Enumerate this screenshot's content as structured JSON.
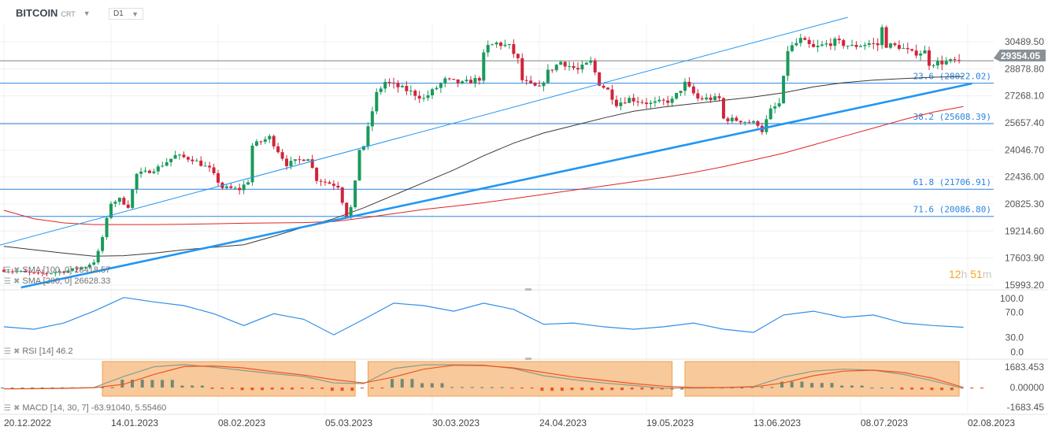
{
  "header": {
    "symbol": "BITCOIN",
    "suffix": "CRT",
    "timeframe": "D1"
  },
  "countdown": {
    "hours": "12",
    "h_unit": "h",
    "minutes": "51",
    "m_unit": "m"
  },
  "legends": {
    "sma100": "SMA  [100,  0]  28418.57",
    "sma200": "SMA  [200,  0]  26628.33",
    "rsi": "RSI  [14]  46.2",
    "macd": "MACD  [14,  30,  7]  -63.91040,   5.55460"
  },
  "colors": {
    "up": "#1a9a5c",
    "down": "#d0243a",
    "sma100": "#3a3a3a",
    "sma200": "#e02424",
    "trend": "#2196f3",
    "fib": "#2a84e0",
    "rsi": "#2f8fe8",
    "macd": "#8a9a8a",
    "signal": "#f0541e",
    "highlight": "#f7c08a",
    "last_price_bg": "#8a9196"
  },
  "chart_data": [
    {
      "type": "candlestick",
      "title": "BITCOIN CRT D1",
      "x_ticks": [
        "20.12.2022",
        "14.01.2023",
        "08.02.2023",
        "05.03.2023",
        "30.03.2023",
        "24.04.2023",
        "19.05.2023",
        "13.06.2023",
        "08.07.2023",
        "02.08.2023"
      ],
      "x_range": [
        "2022-12-20",
        "2023-08-03"
      ],
      "y_ticks": [
        "30489.50",
        "28878.80",
        "27268.10",
        "25657.40",
        "24046.70",
        "22436.00",
        "20825.30",
        "19214.60",
        "17603.90",
        "15993.20"
      ],
      "y_range": [
        15993.2,
        30489.5
      ],
      "grid": true,
      "last_price": "29354.05",
      "close_keypoints": [
        [
          "2022-12-20",
          16900
        ],
        [
          "2022-12-28",
          16650
        ],
        [
          "2023-01-04",
          16850
        ],
        [
          "2023-01-08",
          17100
        ],
        [
          "2023-01-10",
          17400
        ],
        [
          "2023-01-11",
          17950
        ],
        [
          "2023-01-12",
          18850
        ],
        [
          "2023-01-13",
          19900
        ],
        [
          "2023-01-14",
          20900
        ],
        [
          "2023-01-16",
          21100
        ],
        [
          "2023-01-18",
          20700
        ],
        [
          "2023-01-20",
          22600
        ],
        [
          "2023-01-22",
          22700
        ],
        [
          "2023-01-25",
          23000
        ],
        [
          "2023-01-29",
          23700
        ],
        [
          "2023-02-02",
          23500
        ],
        [
          "2023-02-06",
          22900
        ],
        [
          "2023-02-09",
          21800
        ],
        [
          "2023-02-13",
          21700
        ],
        [
          "2023-02-15",
          22200
        ],
        [
          "2023-02-16",
          24300
        ],
        [
          "2023-02-20",
          24800
        ],
        [
          "2023-02-24",
          23200
        ],
        [
          "2023-03-01",
          23600
        ],
        [
          "2023-03-03",
          22300
        ],
        [
          "2023-03-08",
          21900
        ],
        [
          "2023-03-10",
          20100
        ],
        [
          "2023-03-11",
          20600
        ],
        [
          "2023-03-12",
          22100
        ],
        [
          "2023-03-13",
          24100
        ],
        [
          "2023-03-14",
          24300
        ],
        [
          "2023-03-17",
          27400
        ],
        [
          "2023-03-19",
          28100
        ],
        [
          "2023-03-22",
          27800
        ],
        [
          "2023-03-25",
          27500
        ],
        [
          "2023-03-28",
          27100
        ],
        [
          "2023-04-02",
          28200
        ],
        [
          "2023-04-06",
          28000
        ],
        [
          "2023-04-10",
          28300
        ],
        [
          "2023-04-11",
          29700
        ],
        [
          "2023-04-12",
          30200
        ],
        [
          "2023-04-14",
          30400
        ],
        [
          "2023-04-17",
          30200
        ],
        [
          "2023-04-19",
          29400
        ],
        [
          "2023-04-20",
          28200
        ],
        [
          "2023-04-22",
          27900
        ],
        [
          "2023-04-24",
          27700
        ],
        [
          "2023-04-26",
          28700
        ],
        [
          "2023-04-29",
          29300
        ],
        [
          "2023-05-03",
          28800
        ],
        [
          "2023-05-06",
          29300
        ],
        [
          "2023-05-08",
          28000
        ],
        [
          "2023-05-10",
          27600
        ],
        [
          "2023-05-12",
          26800
        ],
        [
          "2023-05-15",
          27100
        ],
        [
          "2023-05-20",
          26800
        ],
        [
          "2023-05-25",
          27000
        ],
        [
          "2023-05-28",
          28000
        ],
        [
          "2023-05-31",
          27100
        ],
        [
          "2023-06-05",
          27100
        ],
        [
          "2023-06-06",
          25900
        ],
        [
          "2023-06-10",
          25800
        ],
        [
          "2023-06-14",
          25600
        ],
        [
          "2023-06-15",
          25200
        ],
        [
          "2023-06-17",
          26400
        ],
        [
          "2023-06-19",
          26800
        ],
        [
          "2023-06-20",
          28300
        ],
        [
          "2023-06-21",
          30000
        ],
        [
          "2023-06-24",
          30600
        ],
        [
          "2023-06-27",
          30100
        ],
        [
          "2023-07-02",
          30500
        ],
        [
          "2023-07-06",
          30200
        ],
        [
          "2023-07-10",
          30400
        ],
        [
          "2023-07-12",
          30300
        ],
        [
          "2023-07-13",
          31300
        ],
        [
          "2023-07-14",
          30300
        ],
        [
          "2023-07-17",
          30200
        ],
        [
          "2023-07-20",
          29800
        ],
        [
          "2023-07-23",
          29900
        ],
        [
          "2023-07-24",
          29200
        ],
        [
          "2023-07-31",
          29354.05
        ]
      ],
      "weekly_start": "2022-12-20",
      "sma100": [
        18300,
        18100,
        17900,
        17720,
        17750,
        17900,
        18100,
        18250,
        18400,
        18900,
        19450,
        19950,
        20600,
        21350,
        22100,
        22850,
        23700,
        24450,
        25050,
        25500,
        25950,
        26350,
        26600,
        26800,
        27000,
        27200,
        27450,
        27800,
        28050,
        28200,
        28300,
        28380,
        28418.57
      ],
      "sma200": [
        20450,
        19950,
        19700,
        19600,
        19600,
        19600,
        19620,
        19650,
        19680,
        19700,
        19720,
        19780,
        20000,
        20250,
        20500,
        20700,
        20900,
        21150,
        21400,
        21650,
        21900,
        22150,
        22400,
        22700,
        23050,
        23450,
        23850,
        24350,
        24850,
        25350,
        25850,
        26300,
        26628.33
      ],
      "trendlines": [
        {
          "style": "thin",
          "from": [
            "2022-12-13",
            17962
          ],
          "to": [
            "2023-07-05",
            31944
          ]
        },
        {
          "style": "thick",
          "from": [
            "2022-12-24",
            15852
          ],
          "to": [
            "2023-08-03",
            28003
          ]
        }
      ],
      "fib_levels": [
        {
          "label": "23.6 (28022.02)",
          "value": 28022.02
        },
        {
          "label": "38.2 (25608.39)",
          "value": 25608.39
        },
        {
          "label": "61.8 (21706.91)",
          "value": 21706.91
        },
        {
          "label": "71.6 (20086.80)",
          "value": 20086.8
        }
      ]
    },
    {
      "type": "line",
      "title": "RSI [14]",
      "y_ticks": [
        "100.0",
        "70.0",
        "30.0",
        "0.0"
      ],
      "y_range": [
        0,
        100
      ],
      "values": [
        47,
        43,
        53,
        72,
        94,
        87,
        81,
        68,
        49,
        68,
        59,
        34,
        59,
        85,
        81,
        72,
        85,
        75,
        51,
        53,
        47,
        43,
        47,
        53,
        43,
        38,
        66,
        72,
        62,
        66,
        53,
        49,
        46.2
      ]
    },
    {
      "type": "line+bar",
      "title": "MACD [14, 30, 7]",
      "y_ticks": [
        "1683.453",
        "0.00000",
        "-1683.45"
      ],
      "y_range": [
        -1683.45,
        1683.453
      ],
      "macd": [
        -100,
        -80,
        -50,
        0,
        850,
        1580,
        1750,
        1550,
        1300,
        1050,
        850,
        350,
        300,
        1450,
        1730,
        1740,
        1710,
        1450,
        900,
        600,
        350,
        150,
        -50,
        -50,
        0,
        80,
        800,
        1250,
        1400,
        1320,
        1000,
        500,
        -63.9104
      ],
      "signal": [
        -100,
        -90,
        -70,
        -20,
        250,
        1000,
        1600,
        1650,
        1500,
        1200,
        950,
        600,
        350,
        800,
        1400,
        1700,
        1680,
        1500,
        1150,
        800,
        550,
        300,
        100,
        0,
        0,
        40,
        350,
        900,
        1250,
        1320,
        1150,
        700,
        5.5546
      ],
      "highlight_ranges": [
        [
          "2023-01-12",
          "2023-03-12"
        ],
        [
          "2023-03-15",
          "2023-05-25"
        ],
        [
          "2023-05-28",
          "2023-07-31"
        ]
      ]
    }
  ]
}
